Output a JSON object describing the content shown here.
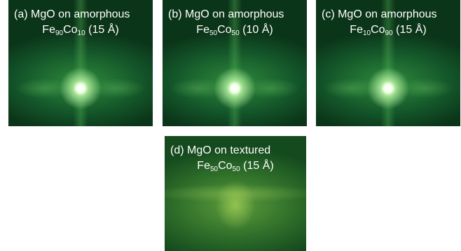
{
  "panels": [
    {
      "label": "(a) MgO on amorphous",
      "el1": "Fe",
      "sub1": "90",
      "el2": "Co",
      "sub2": "10",
      "thickness": "(15 Å)"
    },
    {
      "label": "(b) MgO on amorphous",
      "el1": "Fe",
      "sub1": "50",
      "el2": "Co",
      "sub2": "50",
      "thickness": "(10 Å)"
    },
    {
      "label": "(c) MgO on amorphous",
      "el1": "Fe",
      "sub1": "10",
      "el2": "Co",
      "sub2": "90",
      "thickness": "(15 Å)"
    },
    {
      "label": "(d) MgO on textured",
      "el1": "Fe",
      "sub1": "50",
      "el2": "Co",
      "sub2": "50",
      "thickness": "(15 Å)"
    }
  ]
}
